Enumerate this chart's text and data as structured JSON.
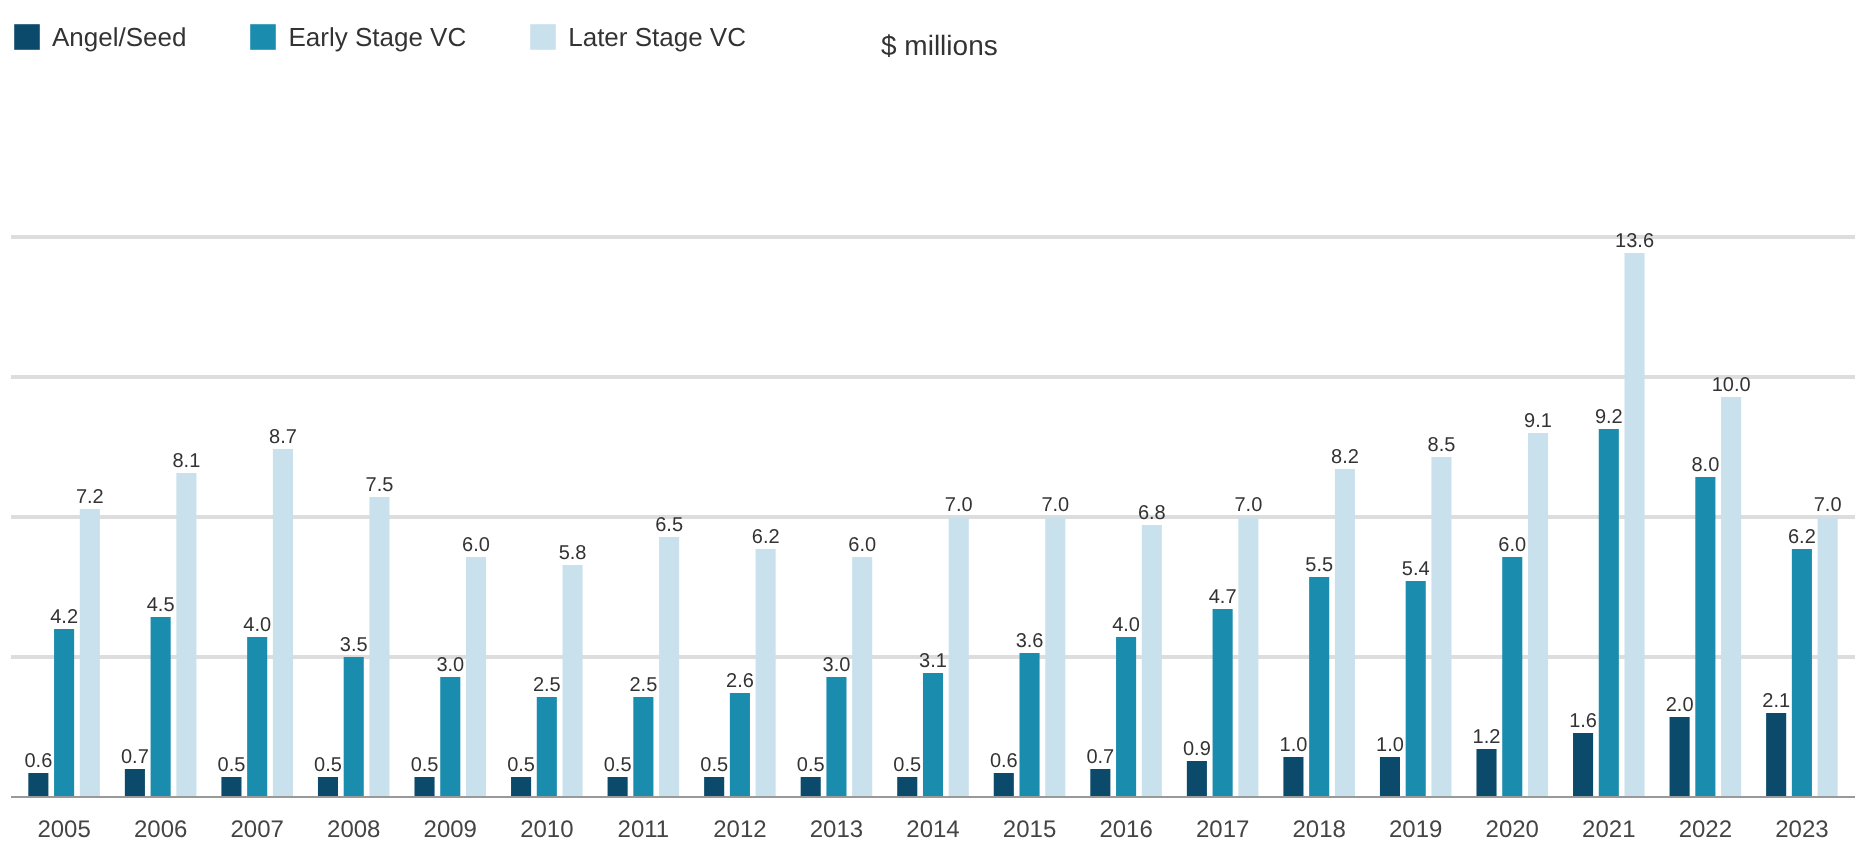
{
  "chart_data": {
    "type": "bar",
    "categories": [
      "2005",
      "2006",
      "2007",
      "2008",
      "2009",
      "2010",
      "2011",
      "2012",
      "2013",
      "2014",
      "2015",
      "2016",
      "2017",
      "2018",
      "2019",
      "2020",
      "2021",
      "2022",
      "2023"
    ],
    "series": [
      {
        "name": "Angel/Seed",
        "color": "#0b4a6a",
        "values": [
          0.6,
          0.7,
          0.5,
          0.5,
          0.5,
          0.5,
          0.5,
          0.5,
          0.5,
          0.5,
          0.6,
          0.7,
          0.9,
          1.0,
          1.0,
          1.2,
          1.6,
          2.0,
          2.1
        ],
        "value_labels": [
          "0.6",
          "0.7",
          "0.5",
          "0.5",
          "0.5",
          "0.5",
          "0.5",
          "0.5",
          "0.5",
          "0.5",
          "0.6",
          "0.7",
          "0.9",
          "1.0",
          "1.0",
          "1.2",
          "1.6",
          "2.0",
          "2.1"
        ]
      },
      {
        "name": "Early Stage VC",
        "color": "#1a8cad",
        "values": [
          4.2,
          4.5,
          4.0,
          3.5,
          3.0,
          2.5,
          2.5,
          2.6,
          3.0,
          3.1,
          3.6,
          4.0,
          4.7,
          5.5,
          5.4,
          6.0,
          9.2,
          8.0,
          6.2
        ],
        "value_labels": [
          "4.2",
          "4.5",
          "4.0",
          "3.5",
          "3.0",
          "2.5",
          "2.5",
          "2.6",
          "3.0",
          "3.1",
          "3.6",
          "4.0",
          "4.7",
          "5.5",
          "5.4",
          "6.0",
          "9.2",
          "8.0",
          "6.2"
        ]
      },
      {
        "name": "Later Stage VC",
        "color": "#c9e1ec",
        "values": [
          7.2,
          8.1,
          8.7,
          7.5,
          6.0,
          5.8,
          6.5,
          6.2,
          6.0,
          7.0,
          7.0,
          6.8,
          7.0,
          8.2,
          8.5,
          9.1,
          13.6,
          10.0,
          7.0
        ],
        "value_labels": [
          "7.2",
          "8.1",
          "8.7",
          "7.5",
          "6.0",
          "5.8",
          "6.5",
          "6.2",
          "6.0",
          "7.0",
          "7.0",
          "6.8",
          "7.0",
          "8.2",
          "8.5",
          "9.1",
          "13.6",
          "10.0",
          "7.0"
        ]
      }
    ],
    "annotations": [
      "$ millions"
    ],
    "ylim": [
      0,
      19.4
    ],
    "yticks": [
      {
        "value": 3.5,
        "label": null
      },
      {
        "value": 7,
        "label": null
      },
      {
        "value": 10.5,
        "label": null
      },
      {
        "value": 14,
        "label": null
      }
    ],
    "tick_labels": "x",
    "grid": "y",
    "legend": "top left"
  }
}
